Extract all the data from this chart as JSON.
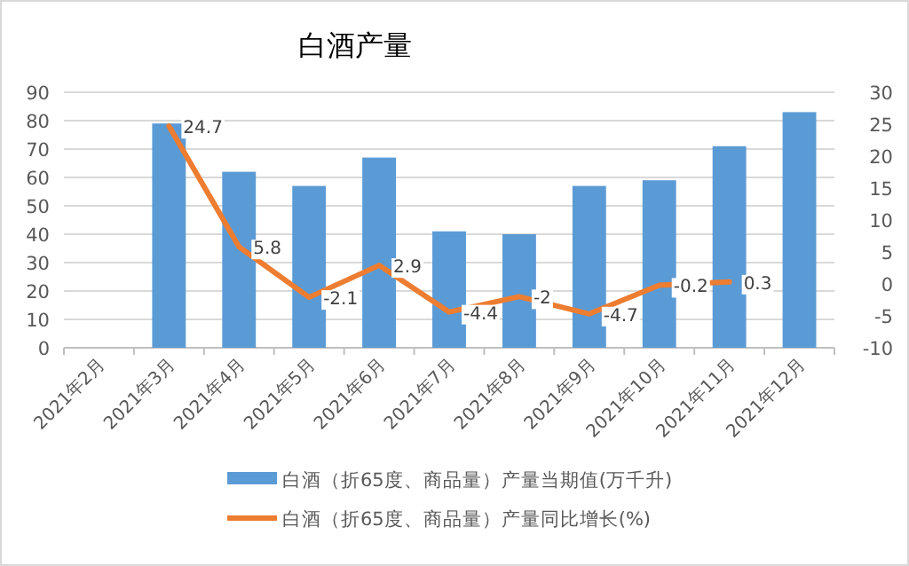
{
  "chart_data": {
    "type": "bar",
    "title": "白酒产量",
    "categories": [
      "2021年2月",
      "2021年3月",
      "2021年4月",
      "2021年5月",
      "2021年6月",
      "2021年7月",
      "2021年8月",
      "2021年9月",
      "2021年10月",
      "2021年11月",
      "2021年12月"
    ],
    "series": [
      {
        "name": "白酒（折65度、商品量）产量当期值(万千升)",
        "color": "#5b9bd5",
        "values": [
          null,
          79,
          62,
          57,
          67,
          41,
          40,
          57,
          59,
          71,
          83
        ]
      },
      {
        "name": "白酒（折65度、商品量）产量同比增长(%)",
        "type": "line",
        "axis": "y2",
        "color": "#ed7d31",
        "values": [
          null,
          24.7,
          5.8,
          -2.1,
          2.9,
          -4.4,
          -2,
          -4.7,
          -0.2,
          0.3,
          null
        ],
        "value_labels": [
          null,
          "24.7",
          "5.8",
          "-2.1",
          "2.9",
          "-4.4",
          "-2",
          "-4.7",
          "-0.2",
          "0.3",
          null
        ]
      }
    ],
    "ylim": [
      0,
      90
    ],
    "yticks": [
      0,
      10,
      20,
      30,
      40,
      50,
      60,
      70,
      80,
      90
    ],
    "y2lim": [
      -10,
      30
    ],
    "y2ticks": [
      -10,
      -5,
      0,
      5,
      10,
      15,
      20,
      25,
      30
    ],
    "grid": "y",
    "legend": "bottom",
    "marker": "none",
    "line_style": "solid"
  }
}
